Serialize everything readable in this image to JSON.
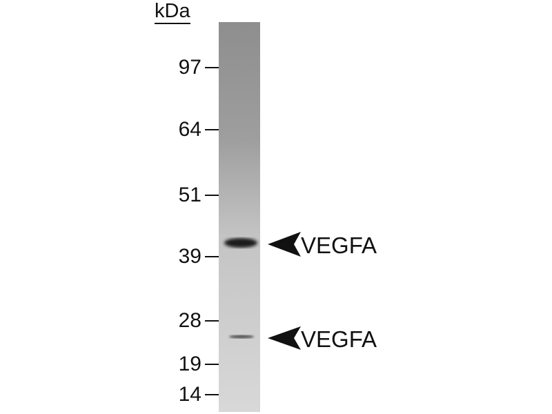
{
  "unit_label": "kDa",
  "markers": [
    {
      "label": "97",
      "kda": 97
    },
    {
      "label": "64",
      "kda": 64
    },
    {
      "label": "51",
      "kda": 51
    },
    {
      "label": "39",
      "kda": 39
    },
    {
      "label": "28",
      "kda": 28
    },
    {
      "label": "19",
      "kda": 19
    },
    {
      "label": "14",
      "kda": 14
    }
  ],
  "bands": [
    {
      "label": "VEGFA",
      "intensity": "strong",
      "arrow_icon": "left-arrowhead-icon"
    },
    {
      "label": "VEGFA",
      "intensity": "weak",
      "arrow_icon": "left-arrowhead-icon"
    }
  ],
  "colors": {
    "text": "#111111",
    "band": "#1a1a1a",
    "lane_top": "#8c8c8c",
    "lane_bottom": "#d6d6d6"
  }
}
